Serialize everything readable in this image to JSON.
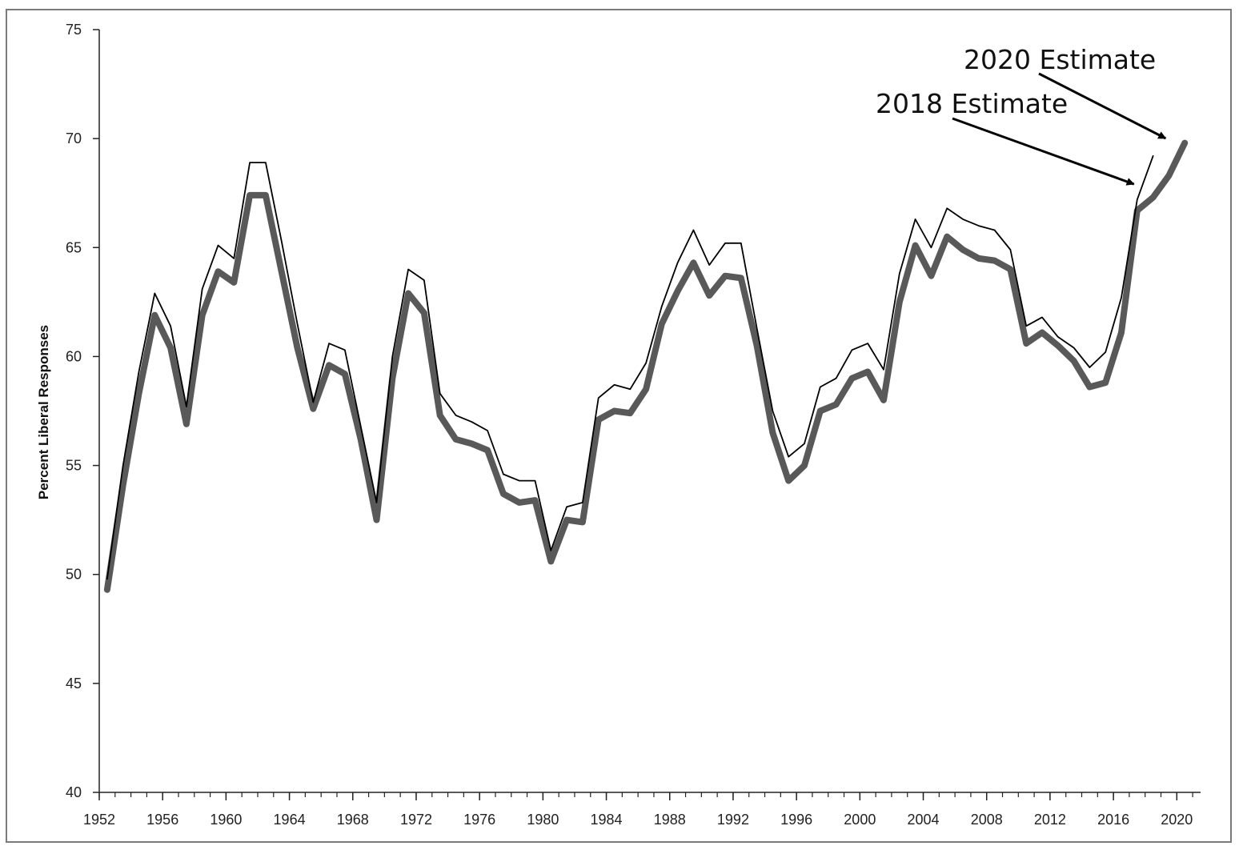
{
  "chart_data": {
    "type": "line",
    "title": "",
    "xlabel": "",
    "ylabel": "Percent Liberal Responses",
    "xlim": [
      1952,
      2021.5
    ],
    "ylim": [
      40,
      75
    ],
    "xticks": [
      1952,
      1956,
      1960,
      1964,
      1968,
      1972,
      1976,
      1980,
      1984,
      1988,
      1992,
      1996,
      2000,
      2004,
      2008,
      2012,
      2016,
      2020
    ],
    "yticks": [
      40,
      45,
      50,
      55,
      60,
      65,
      70,
      75
    ],
    "grid": false,
    "legend": "none",
    "series": [
      {
        "color": "#000000",
        "style": "thin",
        "x": [
          1952.5,
          1953.5,
          1954.5,
          1955.5,
          1956.5,
          1957.5,
          1958.5,
          1959.5,
          1960.5,
          1961.5,
          1962.5,
          1963.5,
          1964.5,
          1965.5,
          1966.5,
          1967.5,
          1968.5,
          1969.5,
          1970.5,
          1971.5,
          1972.5,
          1973.5,
          1974.5,
          1975.5,
          1976.5,
          1977.5,
          1978.5,
          1979.5,
          1980.5,
          1981.5,
          1982.5,
          1983.5,
          1984.5,
          1985.5,
          1986.5,
          1987.5,
          1988.5,
          1989.5,
          1990.5,
          1991.5,
          1992.5,
          1993.5,
          1994.5,
          1995.5,
          1996.5,
          1997.5,
          1998.5,
          1999.5,
          2000.5,
          2001.5,
          2002.5,
          2003.5,
          2004.5,
          2005.5,
          2006.5,
          2007.5,
          2008.5,
          2009.5,
          2010.5,
          2011.5,
          2012.5,
          2013.5,
          2014.5,
          2015.5,
          2016.5,
          2017.5,
          2018.5
        ],
        "values": [
          49.8,
          55.0,
          59.3,
          62.9,
          61.4,
          57.7,
          63.1,
          65.1,
          64.5,
          68.9,
          68.9,
          65.3,
          61.5,
          57.9,
          60.6,
          60.3,
          56.8,
          53.3,
          60.0,
          64.0,
          63.5,
          58.3,
          57.3,
          57.0,
          56.6,
          54.6,
          54.3,
          54.3,
          51.1,
          53.1,
          53.3,
          58.1,
          58.7,
          58.5,
          59.7,
          62.3,
          64.3,
          65.8,
          64.2,
          65.2,
          65.2,
          61.3,
          57.5,
          55.4,
          56.0,
          58.6,
          59.0,
          60.3,
          60.6,
          59.4,
          63.8,
          66.3,
          65.0,
          66.8,
          66.3,
          66.0,
          65.8,
          64.9,
          61.4,
          61.8,
          60.9,
          60.4,
          59.5,
          60.2,
          62.7,
          67.2,
          69.2
        ]
      },
      {
        "color": "#595959",
        "style": "thick",
        "x": [
          1952.5,
          1953.5,
          1954.5,
          1955.5,
          1956.5,
          1957.5,
          1958.5,
          1959.5,
          1960.5,
          1961.5,
          1962.5,
          1963.5,
          1964.5,
          1965.5,
          1966.5,
          1967.5,
          1968.5,
          1969.5,
          1970.5,
          1971.5,
          1972.5,
          1973.5,
          1974.5,
          1975.5,
          1976.5,
          1977.5,
          1978.5,
          1979.5,
          1980.5,
          1981.5,
          1982.5,
          1983.5,
          1984.5,
          1985.5,
          1986.5,
          1987.5,
          1988.5,
          1989.5,
          1990.5,
          1991.5,
          1992.5,
          1993.5,
          1994.5,
          1995.5,
          1996.5,
          1997.5,
          1998.5,
          1999.5,
          2000.5,
          2001.5,
          2002.5,
          2003.5,
          2004.5,
          2005.5,
          2006.5,
          2007.5,
          2008.5,
          2009.5,
          2010.5,
          2011.5,
          2012.5,
          2013.5,
          2014.5,
          2015.5,
          2016.5,
          2017.5,
          2018.5,
          2019.5,
          2020.5
        ],
        "values": [
          49.3,
          54.1,
          58.3,
          61.9,
          60.4,
          56.9,
          61.9,
          63.9,
          63.4,
          67.4,
          67.4,
          63.9,
          60.4,
          57.6,
          59.6,
          59.2,
          56.2,
          52.5,
          59.0,
          62.9,
          62.0,
          57.3,
          56.2,
          56.0,
          55.7,
          53.7,
          53.3,
          53.4,
          50.6,
          52.5,
          52.4,
          57.1,
          57.5,
          57.4,
          58.5,
          61.5,
          63.0,
          64.3,
          62.8,
          63.7,
          63.6,
          60.5,
          56.5,
          54.3,
          55.0,
          57.5,
          57.8,
          59.0,
          59.3,
          58.0,
          62.5,
          65.1,
          63.7,
          65.5,
          64.9,
          64.5,
          64.4,
          64.0,
          60.6,
          61.1,
          60.5,
          59.8,
          58.6,
          58.8,
          61.1,
          66.7,
          67.3,
          68.3,
          69.8
        ]
      }
    ],
    "annotations": [
      {
        "text": "2020 Estimate",
        "arrow_to": [
          2020,
          69.9
        ]
      },
      {
        "text": "2018 Estimate",
        "arrow_to": [
          2018,
          67.8
        ]
      }
    ]
  }
}
